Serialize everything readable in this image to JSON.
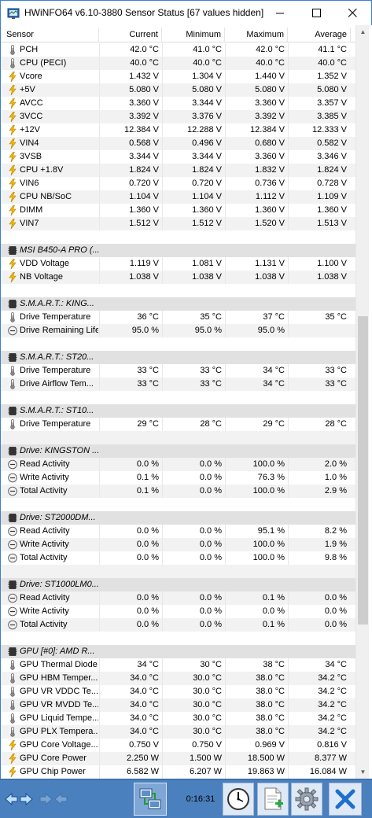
{
  "window": {
    "title": "HWiNFO64 v6.10-3880 Sensor Status [67 values hidden]"
  },
  "table": {
    "headers": {
      "name": "Sensor",
      "current": "Current",
      "minimum": "Minimum",
      "maximum": "Maximum",
      "average": "Average"
    },
    "rows": [
      {
        "type": "data",
        "icon": "thermometer-icon",
        "name": "PCH",
        "cur": "42.0 °C",
        "min": "41.0 °C",
        "max": "42.0 °C",
        "avg": "41.1 °C"
      },
      {
        "type": "data",
        "icon": "thermometer-icon",
        "name": "CPU (PECI)",
        "cur": "40.0 °C",
        "min": "40.0 °C",
        "max": "40.0 °C",
        "avg": "40.0 °C"
      },
      {
        "type": "data",
        "icon": "lightning-icon",
        "name": "Vcore",
        "cur": "1.432 V",
        "min": "1.304 V",
        "max": "1.440 V",
        "avg": "1.352 V"
      },
      {
        "type": "data",
        "icon": "lightning-icon",
        "name": "+5V",
        "cur": "5.080 V",
        "min": "5.080 V",
        "max": "5.080 V",
        "avg": "5.080 V"
      },
      {
        "type": "data",
        "icon": "lightning-icon",
        "name": "AVCC",
        "cur": "3.360 V",
        "min": "3.344 V",
        "max": "3.360 V",
        "avg": "3.357 V"
      },
      {
        "type": "data",
        "icon": "lightning-icon",
        "name": "3VCC",
        "cur": "3.392 V",
        "min": "3.376 V",
        "max": "3.392 V",
        "avg": "3.385 V"
      },
      {
        "type": "data",
        "icon": "lightning-icon",
        "name": "+12V",
        "cur": "12.384 V",
        "min": "12.288 V",
        "max": "12.384 V",
        "avg": "12.333 V"
      },
      {
        "type": "data",
        "icon": "lightning-icon",
        "name": "VIN4",
        "cur": "0.568 V",
        "min": "0.496 V",
        "max": "0.680 V",
        "avg": "0.582 V"
      },
      {
        "type": "data",
        "icon": "lightning-icon",
        "name": "3VSB",
        "cur": "3.344 V",
        "min": "3.344 V",
        "max": "3.360 V",
        "avg": "3.346 V"
      },
      {
        "type": "data",
        "icon": "lightning-icon",
        "name": "CPU +1.8V",
        "cur": "1.824 V",
        "min": "1.824 V",
        "max": "1.832 V",
        "avg": "1.824 V"
      },
      {
        "type": "data",
        "icon": "lightning-icon",
        "name": "VIN6",
        "cur": "0.720 V",
        "min": "0.720 V",
        "max": "0.736 V",
        "avg": "0.728 V"
      },
      {
        "type": "data",
        "icon": "lightning-icon",
        "name": "CPU NB/SoC",
        "cur": "1.104 V",
        "min": "1.104 V",
        "max": "1.112 V",
        "avg": "1.109 V"
      },
      {
        "type": "data",
        "icon": "lightning-icon",
        "name": "DIMM",
        "cur": "1.360 V",
        "min": "1.360 V",
        "max": "1.360 V",
        "avg": "1.360 V"
      },
      {
        "type": "data",
        "icon": "lightning-icon",
        "name": "VIN7",
        "cur": "1.512 V",
        "min": "1.512 V",
        "max": "1.520 V",
        "avg": "1.513 V"
      },
      {
        "type": "blank"
      },
      {
        "type": "group",
        "icon": "chip-icon",
        "name": "MSI B450-A PRO (..."
      },
      {
        "type": "data",
        "icon": "lightning-icon",
        "name": "VDD Voltage",
        "cur": "1.119 V",
        "min": "1.081 V",
        "max": "1.131 V",
        "avg": "1.100 V"
      },
      {
        "type": "data",
        "icon": "lightning-icon",
        "name": "NB Voltage",
        "cur": "1.038 V",
        "min": "1.038 V",
        "max": "1.038 V",
        "avg": "1.038 V"
      },
      {
        "type": "blank"
      },
      {
        "type": "group",
        "icon": "chip-icon",
        "name": "S.M.A.R.T.: KING..."
      },
      {
        "type": "data",
        "icon": "thermometer-icon",
        "name": "Drive Temperature",
        "cur": "36 °C",
        "min": "35 °C",
        "max": "37 °C",
        "avg": "35 °C"
      },
      {
        "type": "data",
        "icon": "gauge-icon",
        "name": "Drive Remaining Life",
        "cur": "95.0 %",
        "min": "95.0 %",
        "max": "95.0 %",
        "avg": ""
      },
      {
        "type": "blank"
      },
      {
        "type": "group",
        "icon": "chip-icon",
        "name": "S.M.A.R.T.: ST20..."
      },
      {
        "type": "data",
        "icon": "thermometer-icon",
        "name": "Drive Temperature",
        "cur": "33 °C",
        "min": "33 °C",
        "max": "34 °C",
        "avg": "33 °C"
      },
      {
        "type": "data",
        "icon": "thermometer-icon",
        "name": "Drive Airflow Tem...",
        "cur": "33 °C",
        "min": "33 °C",
        "max": "34 °C",
        "avg": "33 °C"
      },
      {
        "type": "blank"
      },
      {
        "type": "group",
        "icon": "chip-icon",
        "name": "S.M.A.R.T.: ST10..."
      },
      {
        "type": "data",
        "icon": "thermometer-icon",
        "name": "Drive Temperature",
        "cur": "29 °C",
        "min": "28 °C",
        "max": "29 °C",
        "avg": "28 °C"
      },
      {
        "type": "blank"
      },
      {
        "type": "group",
        "icon": "chip-icon",
        "name": "Drive: KINGSTON ..."
      },
      {
        "type": "data",
        "icon": "gauge-icon",
        "name": "Read Activity",
        "cur": "0.0 %",
        "min": "0.0 %",
        "max": "100.0 %",
        "avg": "2.0 %"
      },
      {
        "type": "data",
        "icon": "gauge-icon",
        "name": "Write Activity",
        "cur": "0.1 %",
        "min": "0.0 %",
        "max": "76.3 %",
        "avg": "1.0 %"
      },
      {
        "type": "data",
        "icon": "gauge-icon",
        "name": "Total Activity",
        "cur": "0.1 %",
        "min": "0.0 %",
        "max": "100.0 %",
        "avg": "2.9 %"
      },
      {
        "type": "blank"
      },
      {
        "type": "group",
        "icon": "chip-icon",
        "name": "Drive: ST2000DM..."
      },
      {
        "type": "data",
        "icon": "gauge-icon",
        "name": "Read Activity",
        "cur": "0.0 %",
        "min": "0.0 %",
        "max": "95.1 %",
        "avg": "8.2 %"
      },
      {
        "type": "data",
        "icon": "gauge-icon",
        "name": "Write Activity",
        "cur": "0.0 %",
        "min": "0.0 %",
        "max": "100.0 %",
        "avg": "1.9 %"
      },
      {
        "type": "data",
        "icon": "gauge-icon",
        "name": "Total Activity",
        "cur": "0.0 %",
        "min": "0.0 %",
        "max": "100.0 %",
        "avg": "9.8 %"
      },
      {
        "type": "blank"
      },
      {
        "type": "group",
        "icon": "chip-icon",
        "name": "Drive: ST1000LM0..."
      },
      {
        "type": "data",
        "icon": "gauge-icon",
        "name": "Read Activity",
        "cur": "0.0 %",
        "min": "0.0 %",
        "max": "0.1 %",
        "avg": "0.0 %"
      },
      {
        "type": "data",
        "icon": "gauge-icon",
        "name": "Write Activity",
        "cur": "0.0 %",
        "min": "0.0 %",
        "max": "0.0 %",
        "avg": "0.0 %"
      },
      {
        "type": "data",
        "icon": "gauge-icon",
        "name": "Total Activity",
        "cur": "0.0 %",
        "min": "0.0 %",
        "max": "0.1 %",
        "avg": "0.0 %"
      },
      {
        "type": "blank"
      },
      {
        "type": "group",
        "icon": "chip-icon",
        "name": "GPU [#0]: AMD R..."
      },
      {
        "type": "data",
        "icon": "thermometer-icon",
        "name": "GPU Thermal Diode",
        "cur": "34 °C",
        "min": "30 °C",
        "max": "38 °C",
        "avg": "34 °C"
      },
      {
        "type": "data",
        "icon": "thermometer-icon",
        "name": "GPU HBM Temper...",
        "cur": "34.0 °C",
        "min": "30.0 °C",
        "max": "38.0 °C",
        "avg": "34.2 °C"
      },
      {
        "type": "data",
        "icon": "thermometer-icon",
        "name": "GPU VR VDDC Te...",
        "cur": "34.0 °C",
        "min": "30.0 °C",
        "max": "38.0 °C",
        "avg": "34.2 °C"
      },
      {
        "type": "data",
        "icon": "thermometer-icon",
        "name": "GPU VR MVDD Te...",
        "cur": "34.0 °C",
        "min": "30.0 °C",
        "max": "38.0 °C",
        "avg": "34.2 °C"
      },
      {
        "type": "data",
        "icon": "thermometer-icon",
        "name": "GPU Liquid Tempe...",
        "cur": "34.0 °C",
        "min": "30.0 °C",
        "max": "38.0 °C",
        "avg": "34.2 °C"
      },
      {
        "type": "data",
        "icon": "thermometer-icon",
        "name": "GPU PLX Tempera...",
        "cur": "34.0 °C",
        "min": "30.0 °C",
        "max": "38.0 °C",
        "avg": "34.2 °C"
      },
      {
        "type": "data",
        "icon": "lightning-icon",
        "name": "GPU Core Voltage...",
        "cur": "0.750 V",
        "min": "0.750 V",
        "max": "0.969 V",
        "avg": "0.816 V"
      },
      {
        "type": "data",
        "icon": "lightning-icon",
        "name": "GPU Core Power",
        "cur": "2.250 W",
        "min": "1.500 W",
        "max": "18.500 W",
        "avg": "8.377 W"
      },
      {
        "type": "data",
        "icon": "lightning-icon",
        "name": "GPU Chip Power",
        "cur": "6.582 W",
        "min": "6.207 W",
        "max": "19.863 W",
        "avg": "16.084 W"
      }
    ]
  },
  "toolbar": {
    "timer": "0:16:31"
  },
  "icons": {
    "app": "hwinfo-app-icon",
    "minimize": "minimize-icon",
    "maximize": "maximize-icon",
    "close": "close-icon",
    "collapse": "arrows-collapse-icon",
    "expand": "arrows-expand-icon",
    "network": "network-icon",
    "clock": "clock-icon",
    "report": "report-icon",
    "settings": "gear-icon",
    "exit": "exit-x-icon"
  },
  "colors": {
    "accent": "#3b7fd6",
    "toolbar": "#4a80bd",
    "group_row": "#e1e1e1",
    "alt_row": "#f2f2f2",
    "lightning": "#f5b800",
    "thermometer": "#7a7a7a",
    "exit": "#1f6fcc"
  }
}
